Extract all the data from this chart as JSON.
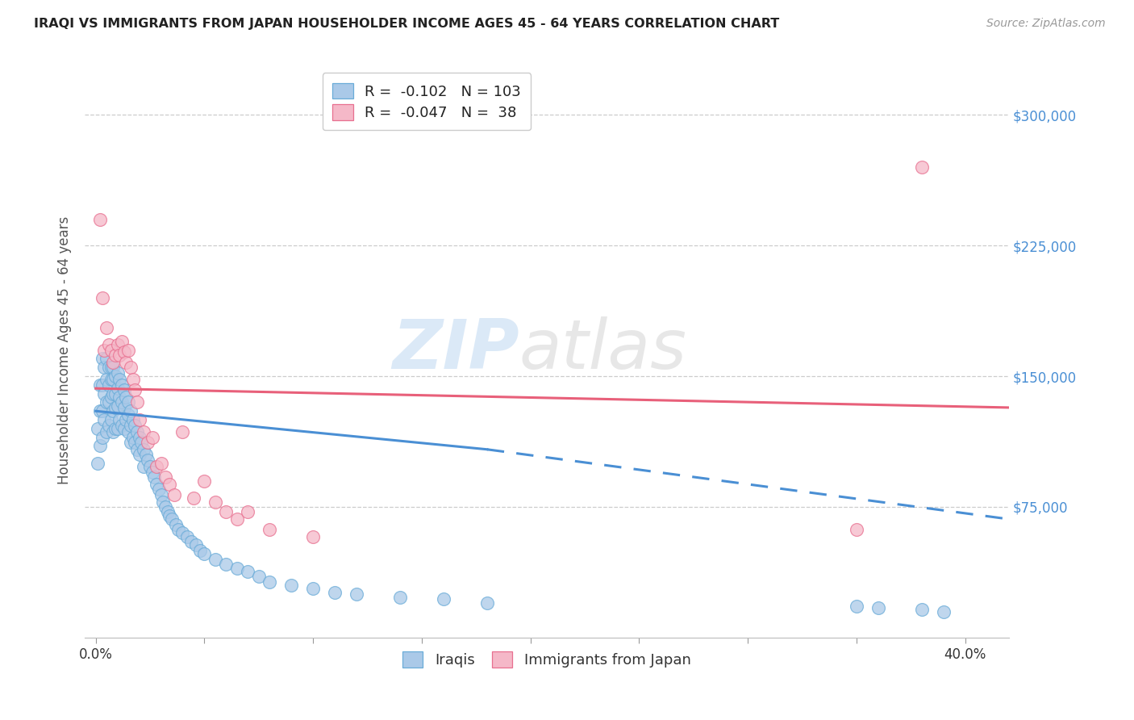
{
  "title": "IRAQI VS IMMIGRANTS FROM JAPAN HOUSEHOLDER INCOME AGES 45 - 64 YEARS CORRELATION CHART",
  "source": "Source: ZipAtlas.com",
  "xlabel_ticks": [
    "0.0%",
    "40.0%"
  ],
  "ylabel_label": "Householder Income Ages 45 - 64 years",
  "ylabel_ticks_right": [
    "$300,000",
    "$225,000",
    "$150,000",
    "$75,000"
  ],
  "ylabel_values": [
    300000,
    225000,
    150000,
    75000
  ],
  "xlim": [
    -0.005,
    0.42
  ],
  "ylim": [
    0,
    330000
  ],
  "legend_labels": [
    "Iraqis",
    "Immigrants from Japan"
  ],
  "iraqis_R": "-0.102",
  "iraqis_N": "103",
  "japan_R": "-0.047",
  "japan_N": "38",
  "iraqis_color": "#aac9e8",
  "japan_color": "#f5b8c8",
  "iraqis_edge_color": "#6aacd8",
  "japan_edge_color": "#e87090",
  "iraqis_line_color": "#4a8fd4",
  "japan_line_color": "#e8607a",
  "background_color": "#ffffff",
  "watermark_zip": "ZIP",
  "watermark_atlas": "atlas",
  "grid_color": "#cccccc",
  "iraqis_scatter_x": [
    0.001,
    0.001,
    0.002,
    0.002,
    0.002,
    0.003,
    0.003,
    0.003,
    0.003,
    0.004,
    0.004,
    0.004,
    0.005,
    0.005,
    0.005,
    0.005,
    0.006,
    0.006,
    0.006,
    0.006,
    0.007,
    0.007,
    0.007,
    0.007,
    0.008,
    0.008,
    0.008,
    0.008,
    0.008,
    0.009,
    0.009,
    0.009,
    0.009,
    0.01,
    0.01,
    0.01,
    0.01,
    0.011,
    0.011,
    0.011,
    0.012,
    0.012,
    0.012,
    0.013,
    0.013,
    0.013,
    0.014,
    0.014,
    0.015,
    0.015,
    0.015,
    0.016,
    0.016,
    0.016,
    0.017,
    0.017,
    0.018,
    0.018,
    0.019,
    0.019,
    0.02,
    0.02,
    0.021,
    0.022,
    0.022,
    0.023,
    0.024,
    0.025,
    0.026,
    0.027,
    0.028,
    0.029,
    0.03,
    0.031,
    0.032,
    0.033,
    0.034,
    0.035,
    0.037,
    0.038,
    0.04,
    0.042,
    0.044,
    0.046,
    0.048,
    0.05,
    0.055,
    0.06,
    0.065,
    0.07,
    0.075,
    0.08,
    0.09,
    0.1,
    0.11,
    0.12,
    0.14,
    0.16,
    0.18,
    0.35,
    0.36,
    0.38,
    0.39
  ],
  "iraqis_scatter_y": [
    120000,
    100000,
    145000,
    130000,
    110000,
    160000,
    145000,
    130000,
    115000,
    155000,
    140000,
    125000,
    160000,
    148000,
    135000,
    118000,
    155000,
    145000,
    135000,
    122000,
    155000,
    148000,
    138000,
    125000,
    155000,
    148000,
    140000,
    130000,
    118000,
    150000,
    140000,
    132000,
    120000,
    152000,
    143000,
    133000,
    120000,
    148000,
    138000,
    125000,
    145000,
    135000,
    122000,
    142000,
    132000,
    120000,
    138000,
    125000,
    135000,
    128000,
    118000,
    130000,
    122000,
    112000,
    125000,
    115000,
    122000,
    112000,
    118000,
    108000,
    115000,
    105000,
    112000,
    108000,
    98000,
    105000,
    102000,
    98000,
    95000,
    92000,
    88000,
    85000,
    82000,
    78000,
    75000,
    72000,
    70000,
    68000,
    65000,
    62000,
    60000,
    58000,
    55000,
    53000,
    50000,
    48000,
    45000,
    42000,
    40000,
    38000,
    35000,
    32000,
    30000,
    28000,
    26000,
    25000,
    23000,
    22000,
    20000,
    18000,
    17000,
    16000,
    15000
  ],
  "japan_scatter_x": [
    0.002,
    0.003,
    0.004,
    0.005,
    0.006,
    0.007,
    0.008,
    0.009,
    0.01,
    0.011,
    0.012,
    0.013,
    0.014,
    0.015,
    0.016,
    0.017,
    0.018,
    0.019,
    0.02,
    0.022,
    0.024,
    0.026,
    0.028,
    0.03,
    0.032,
    0.034,
    0.036,
    0.04,
    0.045,
    0.05,
    0.055,
    0.06,
    0.065,
    0.07,
    0.08,
    0.1,
    0.35,
    0.38
  ],
  "japan_scatter_y": [
    240000,
    195000,
    165000,
    178000,
    168000,
    165000,
    158000,
    162000,
    168000,
    162000,
    170000,
    164000,
    158000,
    165000,
    155000,
    148000,
    142000,
    135000,
    125000,
    118000,
    112000,
    115000,
    98000,
    100000,
    92000,
    88000,
    82000,
    118000,
    80000,
    90000,
    78000,
    72000,
    68000,
    72000,
    62000,
    58000,
    62000,
    270000
  ],
  "iraqis_trend_x0": 0.0,
  "iraqis_trend_x1": 0.18,
  "iraqis_trend_x2": 0.42,
  "iraqis_trend_y0": 130000,
  "iraqis_trend_y1": 108000,
  "iraqis_trend_y2": 68000,
  "japan_trend_x0": 0.0,
  "japan_trend_x1": 0.42,
  "japan_trend_y0": 143000,
  "japan_trend_y1": 132000
}
